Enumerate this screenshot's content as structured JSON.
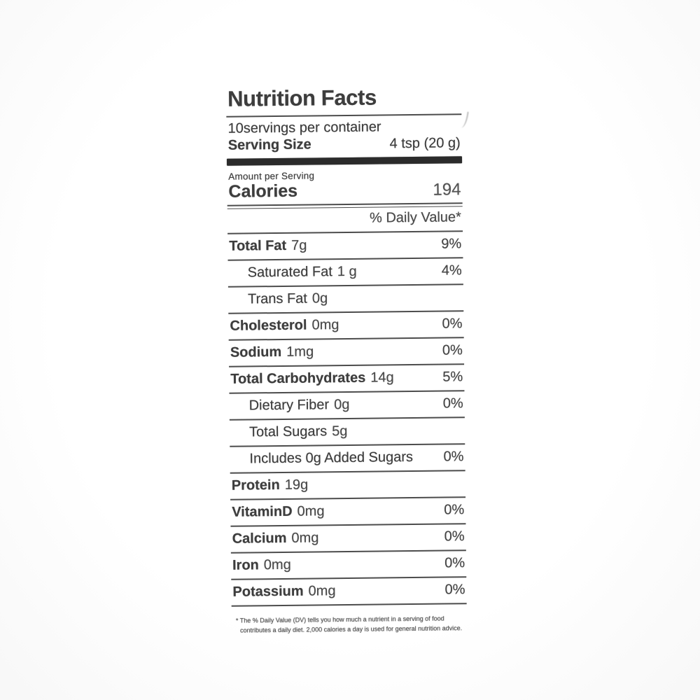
{
  "colors": {
    "text": "#3d3d3d",
    "line": "#4c4c4c",
    "bar": "#2b2b2b"
  },
  "header": {
    "title": "Nutrition Facts",
    "servings_line": "10servings per container",
    "serving_size_label": "Serving Size",
    "serving_size_value": "4 tsp (20 g)"
  },
  "calories": {
    "amount_per_serving_label": "Amount per Serving",
    "label": "Calories",
    "value": "194"
  },
  "daily_value_header": "% Daily Value*",
  "rows": [
    {
      "label": "Total Fat",
      "amount": "7g",
      "dv": "9%",
      "indent": false,
      "bold": true
    },
    {
      "label": "Saturated Fat",
      "amount": "1 g",
      "dv": "4%",
      "indent": true,
      "bold": false
    },
    {
      "label": "Trans Fat",
      "amount": "0g",
      "dv": "",
      "indent": true,
      "bold": false
    },
    {
      "label": "Cholesterol",
      "amount": "0mg",
      "dv": "0%",
      "indent": false,
      "bold": true
    },
    {
      "label": "Sodium",
      "amount": "1mg",
      "dv": "0%",
      "indent": false,
      "bold": true
    },
    {
      "label": "Total Carbohydrates",
      "amount": "14g",
      "dv": "5%",
      "indent": false,
      "bold": true
    },
    {
      "label": "Dietary Fiber",
      "amount": "0g",
      "dv": "0%",
      "indent": true,
      "bold": false
    },
    {
      "label": "Total Sugars",
      "amount": "5g",
      "dv": "",
      "indent": true,
      "bold": false
    },
    {
      "label": "Includes 0g Added Sugars",
      "amount": "",
      "dv": "0%",
      "indent": true,
      "bold": false
    },
    {
      "label": "Protein",
      "amount": "19g",
      "dv": "",
      "indent": false,
      "bold": true,
      "sepMedium": true
    },
    {
      "label": "VitaminD",
      "amount": "0mg",
      "dv": "0%",
      "indent": false,
      "bold": true
    },
    {
      "label": "Calcium",
      "amount": "0mg",
      "dv": "0%",
      "indent": false,
      "bold": true
    },
    {
      "label": "Iron",
      "amount": "0mg",
      "dv": "0%",
      "indent": false,
      "bold": true
    },
    {
      "label": "Potassium",
      "amount": "0mg",
      "dv": "0%",
      "indent": false,
      "bold": true,
      "sepMedium": true
    }
  ],
  "footnote": "* The % Daily Value (DV) tells you how much a nutrient in a serving of food contributes a daily diet. 2,000 calories a day is used for general nutrition advice."
}
